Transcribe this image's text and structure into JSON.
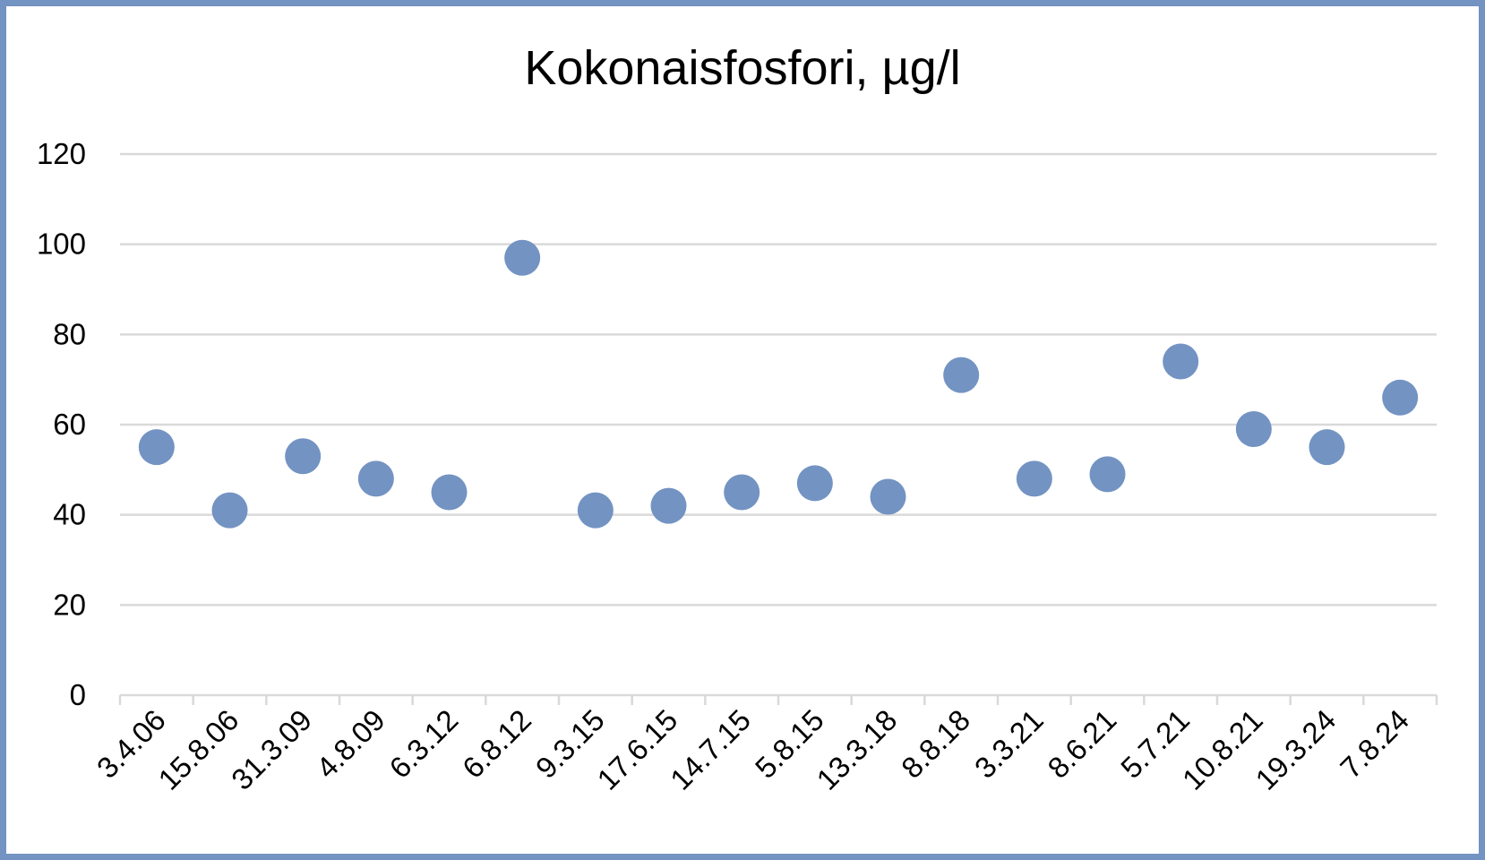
{
  "chart_data": {
    "type": "scatter",
    "title": "Kokonaisfosfori, µg/l",
    "xlabel": "",
    "ylabel": "",
    "categories": [
      "3.4.06",
      "15.8.06",
      "31.3.09",
      "4.8.09",
      "6.3.12",
      "6.8.12",
      "9.3.15",
      "17.6.15",
      "14.7.15",
      "5.8.15",
      "13.3.18",
      "8.8.18",
      "3.3.21",
      "8.6.21",
      "5.7.21",
      "10.8.21",
      "19.3.24",
      "7.8.24"
    ],
    "values": [
      55,
      41,
      53,
      48,
      45,
      97,
      41,
      42,
      45,
      47,
      44,
      71,
      48,
      49,
      74,
      59,
      55,
      66
    ],
    "ylim": [
      0,
      120
    ],
    "yticks": [
      0,
      20,
      40,
      60,
      80,
      100,
      120
    ],
    "grid": true,
    "legend": "none",
    "colors": {
      "marker": "#7393c2",
      "frame": "#7393c2",
      "gridline": "#d9d9d9",
      "axis": "#d9d9d9"
    }
  }
}
